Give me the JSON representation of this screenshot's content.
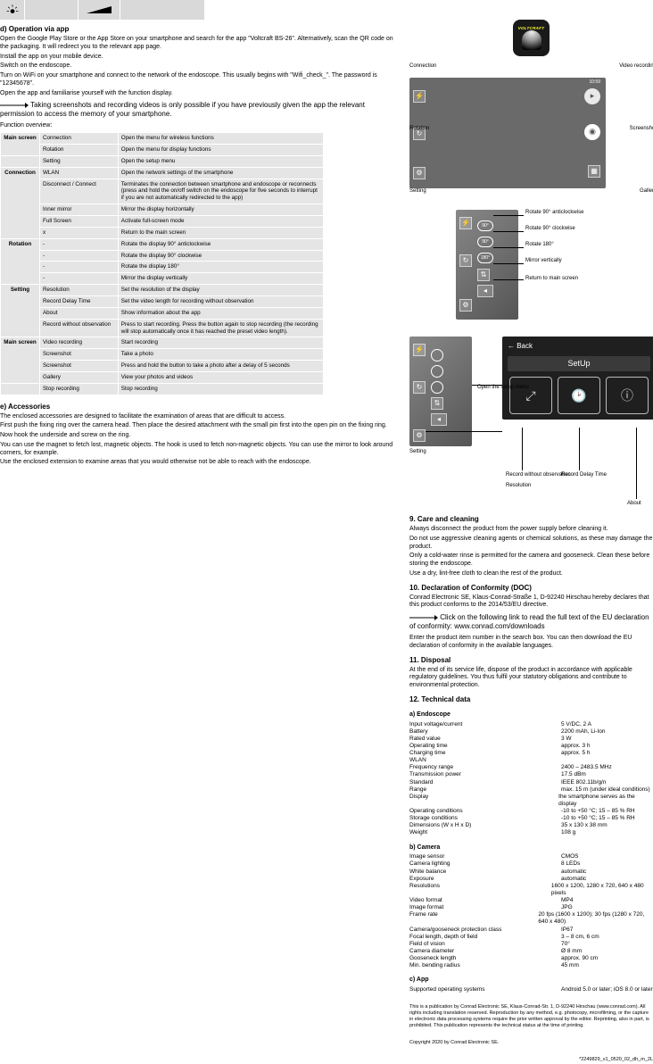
{
  "top_row": {
    "wedge_text": ""
  },
  "sec_d": {
    "heading": "d) Operation via app",
    "steps": [
      "Open the Google Play Store or the App Store on your smartphone and search for the app \"Voltcraft BS-26\". Alternatively, scan the QR code on the packaging. It will redirect you to the relevant app page.",
      "Install the app on your mobile device.",
      "Switch on the endoscope.",
      "Turn on WiFi on your smartphone and connect to the network of the endoscope. This usually begins with \"Wifi_check_\". The password is \"12345678\".",
      "Open the app and familiarise yourself with the function display."
    ],
    "note": "Taking screenshots and recording videos is only possible if you have previously given the app the relevant permission to access the memory of your smartphone.",
    "fn_overview": "Function overview:"
  },
  "table": [
    {
      "group": "Main screen",
      "rows": [
        [
          "Connection",
          "Open the menu for wireless functions"
        ],
        [
          "Rotation",
          "Open the menu for display functions"
        ]
      ]
    },
    {
      "group": "",
      "rows": [
        [
          "Setting",
          "Open the setup menu"
        ]
      ]
    },
    {
      "group": "Connection",
      "rows": [
        [
          "WLAN",
          "Open the network settings of the smartphone"
        ],
        [
          "Disconnect / Connect",
          "Terminates the connection between smartphone and endoscope or reconnects (press and hold the on/off switch on the endoscope for five seconds to interrupt if you are not automatically redirected to the app)"
        ],
        [
          "Inner mirror",
          "Mirror the display horizontally"
        ],
        [
          "Full Screen",
          "Activate full-screen mode"
        ],
        [
          "x",
          "Return to the main screen"
        ]
      ]
    },
    {
      "group": "Rotation",
      "rows": [
        [
          "-",
          "Rotate the display 90° anticlockwise"
        ],
        [
          "-",
          "Rotate the display 90° clockwise"
        ],
        [
          "-",
          "Rotate the display 180°"
        ],
        [
          "-",
          "Mirror the display vertically"
        ]
      ]
    },
    {
      "group": "Setting",
      "rows": [
        [
          "Resolution",
          "Set the resolution of the display"
        ],
        [
          "Record Delay Time",
          "Set the video length for recording without observation"
        ],
        [
          "About",
          "Show information about the app"
        ],
        [
          "Record without observation",
          "Press to start recording. Press the button again to stop recording (the recording will stop automatically once it has reached the preset video length)."
        ]
      ]
    },
    {
      "group": "Main screen",
      "rows": [
        [
          "Video recording",
          "Start recording"
        ],
        [
          "Screenshot",
          "Take a photo"
        ],
        [
          "Screenshot",
          "Press and hold the button to take a photo after a delay of 5 seconds"
        ],
        [
          "Gallery",
          "View your photos and videos"
        ]
      ]
    },
    {
      "group": "",
      "rows": [
        [
          "Stop recording",
          "Stop recording"
        ]
      ]
    }
  ],
  "sec_e": {
    "heading": "e) Accessories",
    "paras": [
      "The enclosed accessories are designed to facilitate the examination of areas that are difficult to access.",
      "First push the fixing ring over the camera head. Then place the desired attachment with the small pin first into the open pin on the fixing ring.",
      "Now hook the underside and screw on the ring.",
      "You can use the magnet to fetch lost, magnetic objects. The hook is used to fetch non-magnetic objects. You can use the mirror to look around corners, for example.",
      "Use the enclosed extension to examine areas that you would otherwise not be able to reach with the endoscope."
    ]
  },
  "lg_screen": {
    "time": "10:59",
    "captions_left": [
      "Connection",
      "Rotation",
      "Setting"
    ],
    "captions_right": [
      "Video recording",
      "Screenshot",
      "Gallery"
    ]
  },
  "md_screen": {
    "labels": [
      "90°",
      "90°",
      "180°"
    ],
    "captions": [
      "Rotate 90° anticlockwise",
      "Rotate 90° clockwise",
      "Rotate 180°",
      "Mirror vertically",
      "Return to main screen"
    ]
  },
  "setup": {
    "back": "←  Back",
    "title": "SetUp",
    "caption_setting": "Setting",
    "caption_res": "Resolution",
    "caption_delay": "Record Delay Time",
    "caption_about": "About",
    "caption_rec_wo": "Record without observation",
    "caption_open": "Open the setup menu"
  },
  "care": {
    "title_num": "9.",
    "title": "Care and cleaning",
    "bullets": [
      "Always disconnect the product from the power supply before cleaning it.",
      "Do not use aggressive cleaning agents or chemical solutions, as these may damage the product.",
      "Only a cold-water rinse is permitted for the camera and gooseneck. Clean these before storing the endoscope.",
      "Use a dry, lint-free cloth to clean the rest of the product."
    ]
  },
  "conformity": {
    "title_num": "10.",
    "title": "Declaration of Conformity (DOC)",
    "p1": "Conrad Electronic SE, Klaus-Conrad-Straße 1, D-92240 Hirschau hereby declares that this product conforms to the 2014/53/EU directive.",
    "arrow_note": "Click on the following link to read the full text of the EU declaration of conformity: www.conrad.com/downloads",
    "p2": "Enter the product item number in the search box. You can then download the EU declaration of conformity in the available languages."
  },
  "disposal": {
    "title_num": "11.",
    "title": "Disposal",
    "p": "At the end of its service life, dispose of the product in accordance with applicable regulatory guidelines. You thus fulfil your statutory obligations and contribute to environmental protection."
  },
  "specs": {
    "title_num": "12.",
    "title": "Technical data",
    "groups": {
      "endoscope": {
        "heading": "a) Endoscope",
        "rows": [
          [
            "Input voltage/current",
            "5 V/DC, 2 A"
          ],
          [
            "Battery",
            "2200 mAh, Li-Ion"
          ],
          [
            "Rated value",
            "3 W"
          ],
          [
            "Operating time",
            "approx. 3 h"
          ],
          [
            "Charging time",
            "approx. 5 h"
          ],
          [
            "WLAN",
            ""
          ],
          [
            "  Frequency range",
            "2400 – 2483.5 MHz"
          ],
          [
            "  Transmission power",
            "17.5 dBm"
          ],
          [
            "  Standard",
            "IEEE 802.11b/g/n"
          ],
          [
            "  Range",
            "max. 15 m (under ideal conditions)"
          ],
          [
            "Display",
            "the smartphone serves as the display"
          ],
          [
            "Operating conditions",
            "-10 to +50 °C; 15 – 85 % RH"
          ],
          [
            "Storage conditions",
            "-10 to +50 °C; 15 – 85 % RH"
          ],
          [
            "Dimensions (W x H x D)",
            "35 x 130 x 38 mm"
          ],
          [
            "Weight",
            "108 g"
          ]
        ]
      },
      "camera": {
        "heading": "b) Camera",
        "rows": [
          [
            "Image sensor",
            "CMOS"
          ],
          [
            "Camera lighting",
            "8 LEDs"
          ],
          [
            "White balance",
            "automatic"
          ],
          [
            "Exposure",
            "automatic"
          ],
          [
            "Resolutions",
            "1600 x 1200, 1280 x 720, 640 x 480 pixels"
          ],
          [
            "Video format",
            "MP4"
          ],
          [
            "Image format",
            "JPG"
          ],
          [
            "Frame rate",
            "20 fps (1600 x 1200); 30 fps (1280 x 720, 640 x 480)"
          ],
          [
            "Camera/gooseneck protection class",
            "IP67"
          ],
          [
            "Focal length, depth of field",
            "3 – 8 cm, 6 cm"
          ],
          [
            "Field of vision",
            "70°"
          ],
          [
            "Camera diameter",
            "Ø 8 mm"
          ],
          [
            "Gooseneck length",
            "approx. 90 cm"
          ],
          [
            "Min. bending radius",
            "45 mm"
          ]
        ]
      },
      "app": {
        "heading": "c) App",
        "rows": [
          [
            "Supported operating systems",
            "Android 5.0 or later; iOS 8.0 or later"
          ]
        ]
      }
    }
  },
  "footer": {
    "l1": "This is a publication by Conrad Electronic SE, Klaus-Conrad-Str. 1, D-92240 Hirschau (www.conrad.com). All rights including translation reserved. Reproduction by any method, e.g. photocopy, microfilming, or the capture in electronic data processing systems require the prior written approval by the editor. Reprinting, also in part, is prohibited. This publication represents the technical status at the time of printing.",
    "l2": "Copyright 2020 by Conrad Electronic SE.",
    "code": "*2249829_v1_0520_02_dh_m_2L"
  },
  "colors": {
    "cell": "#e5e5e5",
    "screen": "#6a6a6a",
    "dark": "#1f1f1f"
  }
}
